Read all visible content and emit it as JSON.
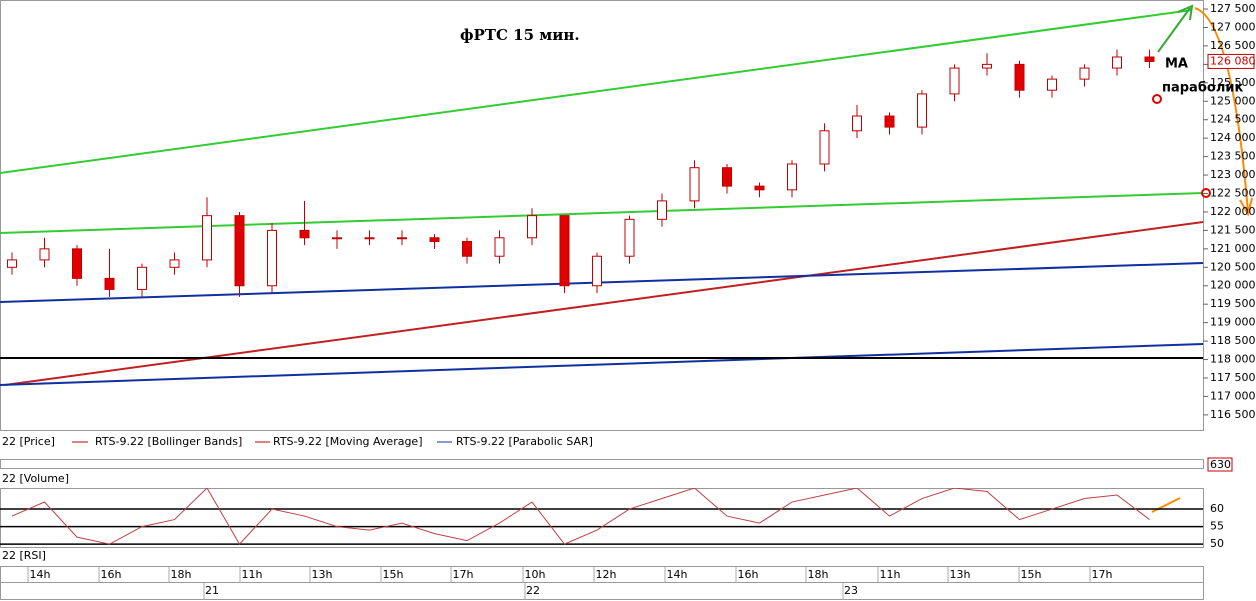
{
  "chart_data": {
    "type": "candlestick",
    "title": "фРТС   15 мин.",
    "annotations": [
      "MA",
      "параболик"
    ],
    "open": [
      120500,
      120700,
      121000,
      120200,
      119900,
      120500,
      120700,
      121900,
      120000,
      121500,
      121300,
      121300,
      121300,
      121300,
      121200,
      120800,
      121300,
      121900,
      120000,
      120800,
      121800,
      122300,
      123200,
      122700,
      122600,
      123300,
      124200,
      124600,
      124300,
      125200,
      125900,
      126000,
      125300,
      125600,
      125900,
      126200
    ],
    "high": [
      120900,
      121300,
      121100,
      121000,
      120600,
      120900,
      122400,
      122000,
      121700,
      122300,
      121500,
      121500,
      121500,
      121400,
      121300,
      121500,
      122100,
      121900,
      120900,
      121900,
      122500,
      123400,
      123300,
      122800,
      123400,
      124400,
      124900,
      124700,
      125300,
      126000,
      126300,
      126100,
      125700,
      126000,
      126400,
      126400
    ],
    "low": [
      120300,
      120500,
      120000,
      119700,
      119700,
      120300,
      120500,
      119700,
      119800,
      121100,
      121000,
      121100,
      121100,
      121000,
      120600,
      120600,
      121100,
      119800,
      119800,
      120600,
      121600,
      122100,
      122500,
      122400,
      122400,
      123100,
      124000,
      124100,
      124100,
      125000,
      125700,
      125100,
      125100,
      125400,
      125700,
      125900
    ],
    "close": [
      120700,
      121000,
      120200,
      119900,
      120500,
      120700,
      121900,
      120000,
      121500,
      121300,
      121300,
      121300,
      121300,
      121200,
      120800,
      121300,
      121900,
      120000,
      120800,
      121800,
      122300,
      123200,
      122700,
      122600,
      123300,
      124200,
      124600,
      124300,
      125200,
      125900,
      126000,
      125300,
      125600,
      125900,
      126200,
      126080
    ],
    "up_color": "#ffffff",
    "down_color": "#e00000",
    "edge_color": "#c00000",
    "ylim": [
      116090,
      127745
    ],
    "yticks": [
      {
        "value": 127500,
        "label": "127 500"
      },
      {
        "value": 127000,
        "label": "127 000"
      },
      {
        "value": 126500,
        "label": "126 500"
      },
      {
        "value": 126000,
        "label": "126 000"
      },
      {
        "value": 125500,
        "label": "125 500"
      },
      {
        "value": 125000,
        "label": "125 000"
      },
      {
        "value": 124500,
        "label": "124 500"
      },
      {
        "value": 124000,
        "label": "124 000"
      },
      {
        "value": 123500,
        "label": "123 500"
      },
      {
        "value": 123000,
        "label": "123 000"
      },
      {
        "value": 122500,
        "label": "122 500"
      },
      {
        "value": 122000,
        "label": "122 000"
      },
      {
        "value": 121500,
        "label": "121 500"
      },
      {
        "value": 121000,
        "label": "121 000"
      },
      {
        "value": 120500,
        "label": "120 500"
      },
      {
        "value": 120000,
        "label": "120 000"
      },
      {
        "value": 119500,
        "label": "119 500"
      },
      {
        "value": 119000,
        "label": "119 000"
      },
      {
        "value": 118500,
        "label": "118 500"
      },
      {
        "value": 118000,
        "label": "118 000"
      },
      {
        "value": 117500,
        "label": "117 500"
      },
      {
        "value": 117000,
        "label": "117 000"
      },
      {
        "value": 116500,
        "label": "116 500"
      }
    ],
    "last_price": {
      "value": 126080,
      "label": "126 080"
    },
    "legend": [
      "22 [Price]",
      "RTS-9.22 [Bollinger Bands]",
      "RTS-9.22 [Moving Average]",
      "RTS-9.22 [Parabolic SAR]"
    ],
    "volume": {
      "label": "22 [Volume]",
      "last": 630
    },
    "rsi": {
      "label": "22 [RSI]",
      "color": "#c04040",
      "values": [
        58,
        62,
        52,
        50,
        55,
        57,
        66,
        50,
        60,
        58,
        55,
        54,
        56,
        53,
        51,
        56,
        62,
        50,
        54,
        60,
        63,
        66,
        58,
        56,
        62,
        64,
        66,
        58,
        63,
        66,
        65,
        57,
        60,
        63,
        64,
        57
      ],
      "ylim": [
        48.9,
        66
      ],
      "yticks": [
        60,
        55,
        50
      ]
    },
    "time_labels": [
      "14h",
      "16h",
      "18h",
      "11h",
      "13h",
      "15h",
      "17h",
      "10h",
      "12h",
      "14h",
      "16h",
      "18h",
      "11h",
      "13h",
      "15h",
      "17h"
    ],
    "date_labels": [
      "21",
      "22",
      "23"
    ]
  }
}
